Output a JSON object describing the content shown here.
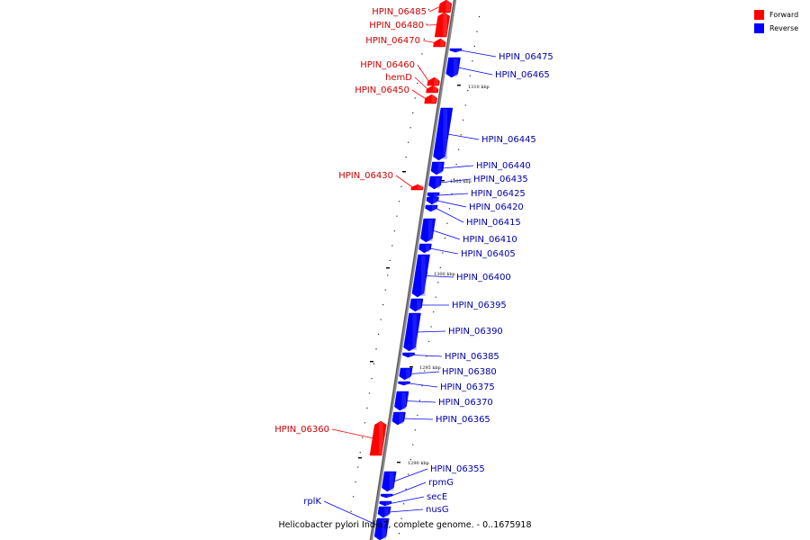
{
  "legend": {
    "forward": {
      "label": "Forward",
      "color": "#ff0000"
    },
    "reverse": {
      "label": "Reverse",
      "color": "#0000ff"
    }
  },
  "caption": "Helicobacter pylori India7, complete genome. - 0..1675918",
  "scale_labels": [
    "1310 kbp",
    "1305 kbp",
    "1300 kbp",
    "1295 kbp",
    "1290 kbp"
  ],
  "genes": [
    {
      "id": "HPIN_06485",
      "strand": "forward"
    },
    {
      "id": "HPIN_06480",
      "strand": "forward"
    },
    {
      "id": "HPIN_06470",
      "strand": "forward"
    },
    {
      "id": "HPIN_06475",
      "strand": "reverse"
    },
    {
      "id": "HPIN_06465",
      "strand": "reverse"
    },
    {
      "id": "HPIN_06460",
      "strand": "forward"
    },
    {
      "id": "hemD",
      "strand": "forward"
    },
    {
      "id": "HPIN_06450",
      "strand": "forward"
    },
    {
      "id": "HPIN_06445",
      "strand": "reverse"
    },
    {
      "id": "HPIN_06440",
      "strand": "reverse"
    },
    {
      "id": "HPIN_06435",
      "strand": "reverse"
    },
    {
      "id": "HPIN_06430",
      "strand": "forward"
    },
    {
      "id": "HPIN_06425",
      "strand": "reverse"
    },
    {
      "id": "HPIN_06420",
      "strand": "reverse"
    },
    {
      "id": "HPIN_06415",
      "strand": "reverse"
    },
    {
      "id": "HPIN_06410",
      "strand": "reverse"
    },
    {
      "id": "HPIN_06405",
      "strand": "reverse"
    },
    {
      "id": "HPIN_06400",
      "strand": "reverse"
    },
    {
      "id": "HPIN_06395",
      "strand": "reverse"
    },
    {
      "id": "HPIN_06390",
      "strand": "reverse"
    },
    {
      "id": "HPIN_06385",
      "strand": "reverse"
    },
    {
      "id": "HPIN_06380",
      "strand": "reverse"
    },
    {
      "id": "HPIN_06375",
      "strand": "reverse"
    },
    {
      "id": "HPIN_06370",
      "strand": "reverse"
    },
    {
      "id": "HPIN_06365",
      "strand": "reverse"
    },
    {
      "id": "HPIN_06360",
      "strand": "forward"
    },
    {
      "id": "HPIN_06355",
      "strand": "reverse"
    },
    {
      "id": "rpmG",
      "strand": "reverse"
    },
    {
      "id": "secE",
      "strand": "reverse"
    },
    {
      "id": "nusG",
      "strand": "reverse"
    },
    {
      "id": "rplK",
      "strand": "reverse"
    }
  ]
}
